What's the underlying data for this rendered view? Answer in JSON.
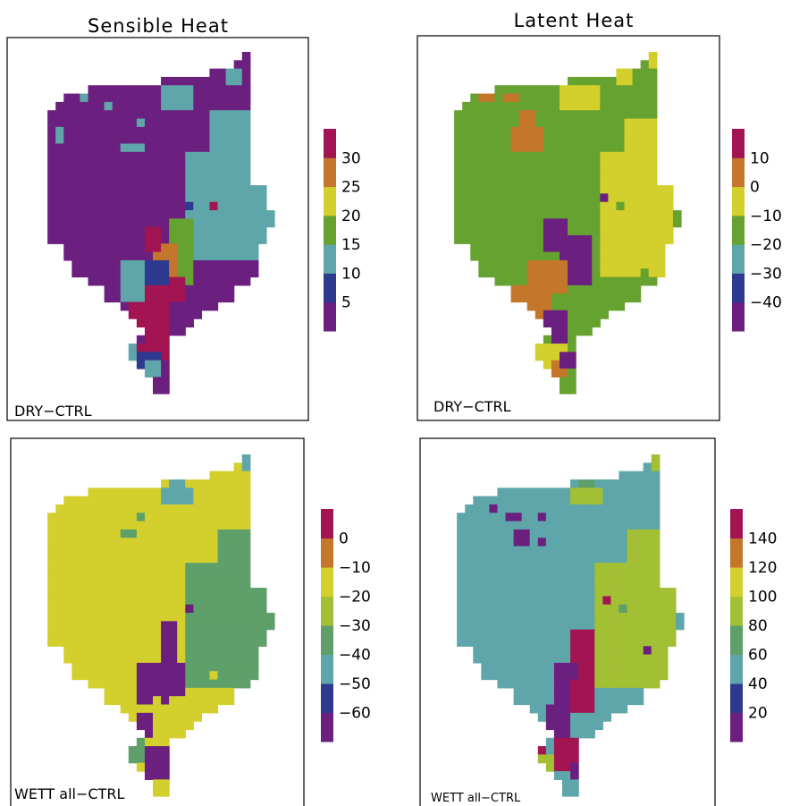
{
  "colors": {
    "purple": "#6b1f7f",
    "navy": "#2e3a8f",
    "teal": "#5fa6aa",
    "green": "#66a230",
    "yellow": "#d3cf2c",
    "orange": "#c4772a",
    "crimson": "#a21552",
    "lime": "#a3bf34",
    "sage": "#5e9f6a"
  },
  "chart_data": [
    {
      "type": "heatmap",
      "title": "Sensible Heat",
      "caption": "DRY−CTRL",
      "colorbar": {
        "tick_labels": [
          "5",
          "10",
          "15",
          "20",
          "25",
          "30"
        ],
        "bands": [
          "purple",
          "navy",
          "teal",
          "green",
          "yellow",
          "orange",
          "crimson"
        ]
      }
    },
    {
      "type": "heatmap",
      "title": "Latent Heat",
      "caption": "DRY−CTRL",
      "colorbar": {
        "tick_labels": [
          "−40",
          "−30",
          "−20",
          "−10",
          "0",
          "10"
        ],
        "bands": [
          "purple",
          "navy",
          "teal",
          "green",
          "yellow",
          "orange",
          "crimson"
        ]
      }
    },
    {
      "type": "heatmap",
      "title": "",
      "caption": "WETT all−CTRL",
      "colorbar": {
        "tick_labels": [
          "−60",
          "−50",
          "−40",
          "−30",
          "−20",
          "−10",
          "0"
        ],
        "bands": [
          "purple",
          "navy",
          "teal",
          "sage",
          "lime",
          "yellow",
          "orange",
          "crimson"
        ]
      }
    },
    {
      "type": "heatmap",
      "title": "",
      "caption": "WETT all−CTRL",
      "colorbar": {
        "tick_labels": [
          "20",
          "40",
          "60",
          "80",
          "100",
          "120",
          "140"
        ],
        "bands": [
          "purple",
          "navy",
          "teal",
          "sage",
          "lime",
          "yellow",
          "orange",
          "crimson"
        ]
      }
    }
  ]
}
